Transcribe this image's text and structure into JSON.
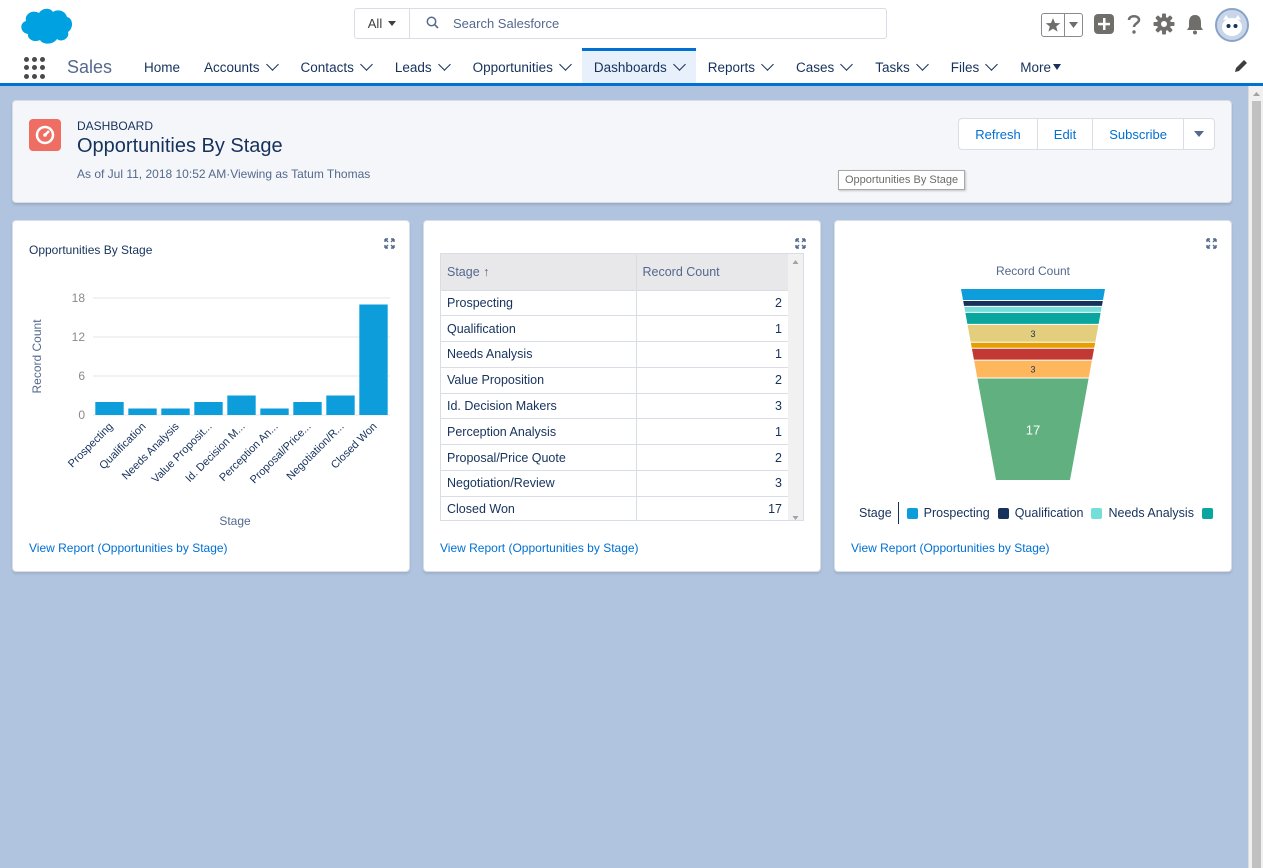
{
  "topbar": {
    "search_scope": "All",
    "search_placeholder": "Search Salesforce"
  },
  "nav": {
    "app_name": "Sales",
    "items": [
      {
        "label": "Home",
        "dropdown": false
      },
      {
        "label": "Accounts",
        "dropdown": true
      },
      {
        "label": "Contacts",
        "dropdown": true
      },
      {
        "label": "Leads",
        "dropdown": true
      },
      {
        "label": "Opportunities",
        "dropdown": true
      },
      {
        "label": "Dashboards",
        "dropdown": true,
        "active": true
      },
      {
        "label": "Reports",
        "dropdown": true
      },
      {
        "label": "Cases",
        "dropdown": true
      },
      {
        "label": "Tasks",
        "dropdown": true
      },
      {
        "label": "Files",
        "dropdown": true
      },
      {
        "label": "More",
        "dropdown": "triangle"
      }
    ]
  },
  "header": {
    "eyebrow": "DASHBOARD",
    "title": "Opportunities By Stage",
    "as_of": "As of Jul 11, 2018 10:52 AM·Viewing as Tatum Thomas",
    "buttons": [
      "Refresh",
      "Edit",
      "Subscribe"
    ],
    "tooltip": "Opportunities By Stage"
  },
  "card1": {
    "title": "Opportunities By Stage",
    "view_report": "View Report (Opportunities by Stage)"
  },
  "card2": {
    "columns": [
      "Stage ↑",
      "Record Count"
    ],
    "rows": [
      [
        "Prospecting",
        "2"
      ],
      [
        "Qualification",
        "1"
      ],
      [
        "Needs Analysis",
        "1"
      ],
      [
        "Value Proposition",
        "2"
      ],
      [
        "Id. Decision Makers",
        "3"
      ],
      [
        "Perception Analysis",
        "1"
      ],
      [
        "Proposal/Price Quote",
        "2"
      ],
      [
        "Negotiation/Review",
        "3"
      ],
      [
        "Closed Won",
        "17"
      ]
    ],
    "view_report": "View Report (Opportunities by Stage)"
  },
  "card3": {
    "view_report": "View Report (Opportunities by Stage)",
    "legend_title": "Stage",
    "legend": [
      {
        "label": "Prospecting",
        "color": "#0c9dda"
      },
      {
        "label": "Qualification",
        "color": "#16325c"
      },
      {
        "label": "Needs Analysis",
        "color": "#76ded9"
      },
      {
        "label": "",
        "color": "#08a69e"
      }
    ]
  },
  "chart_data": [
    {
      "type": "bar",
      "categories": [
        "Prospecting",
        "Qualification",
        "Needs Analysis",
        "Value Proposit...",
        "Id. Decision M...",
        "Perception An...",
        "Proposal/Price...",
        "Negotiation/R...",
        "Closed Won"
      ],
      "values": [
        2,
        1,
        1,
        2,
        3,
        1,
        2,
        3,
        17
      ],
      "xlabel": "Stage",
      "ylabel": "Record Count",
      "yticks": [
        0,
        6,
        12,
        18
      ],
      "ylim": [
        0,
        18
      ],
      "grid": true,
      "color": "#0c9dda"
    },
    {
      "type": "funnel",
      "title": "Record Count",
      "categories": [
        "Prospecting",
        "Qualification",
        "Needs Analysis",
        "Value Proposition",
        "Id. Decision Makers",
        "Perception Analysis",
        "Proposal/Price Quote",
        "Negotiation/Review",
        "Closed Won"
      ],
      "values": [
        2,
        1,
        1,
        2,
        3,
        1,
        2,
        3,
        17
      ],
      "data_labels": [
        "",
        "",
        "",
        "",
        "3",
        "",
        "",
        "3",
        "17"
      ],
      "colors": [
        "#0c9dda",
        "#16325c",
        "#76ded9",
        "#08a69e",
        "#e2ce7d",
        "#e69f00",
        "#c23934",
        "#ffb75d",
        "#60b17f"
      ]
    }
  ]
}
